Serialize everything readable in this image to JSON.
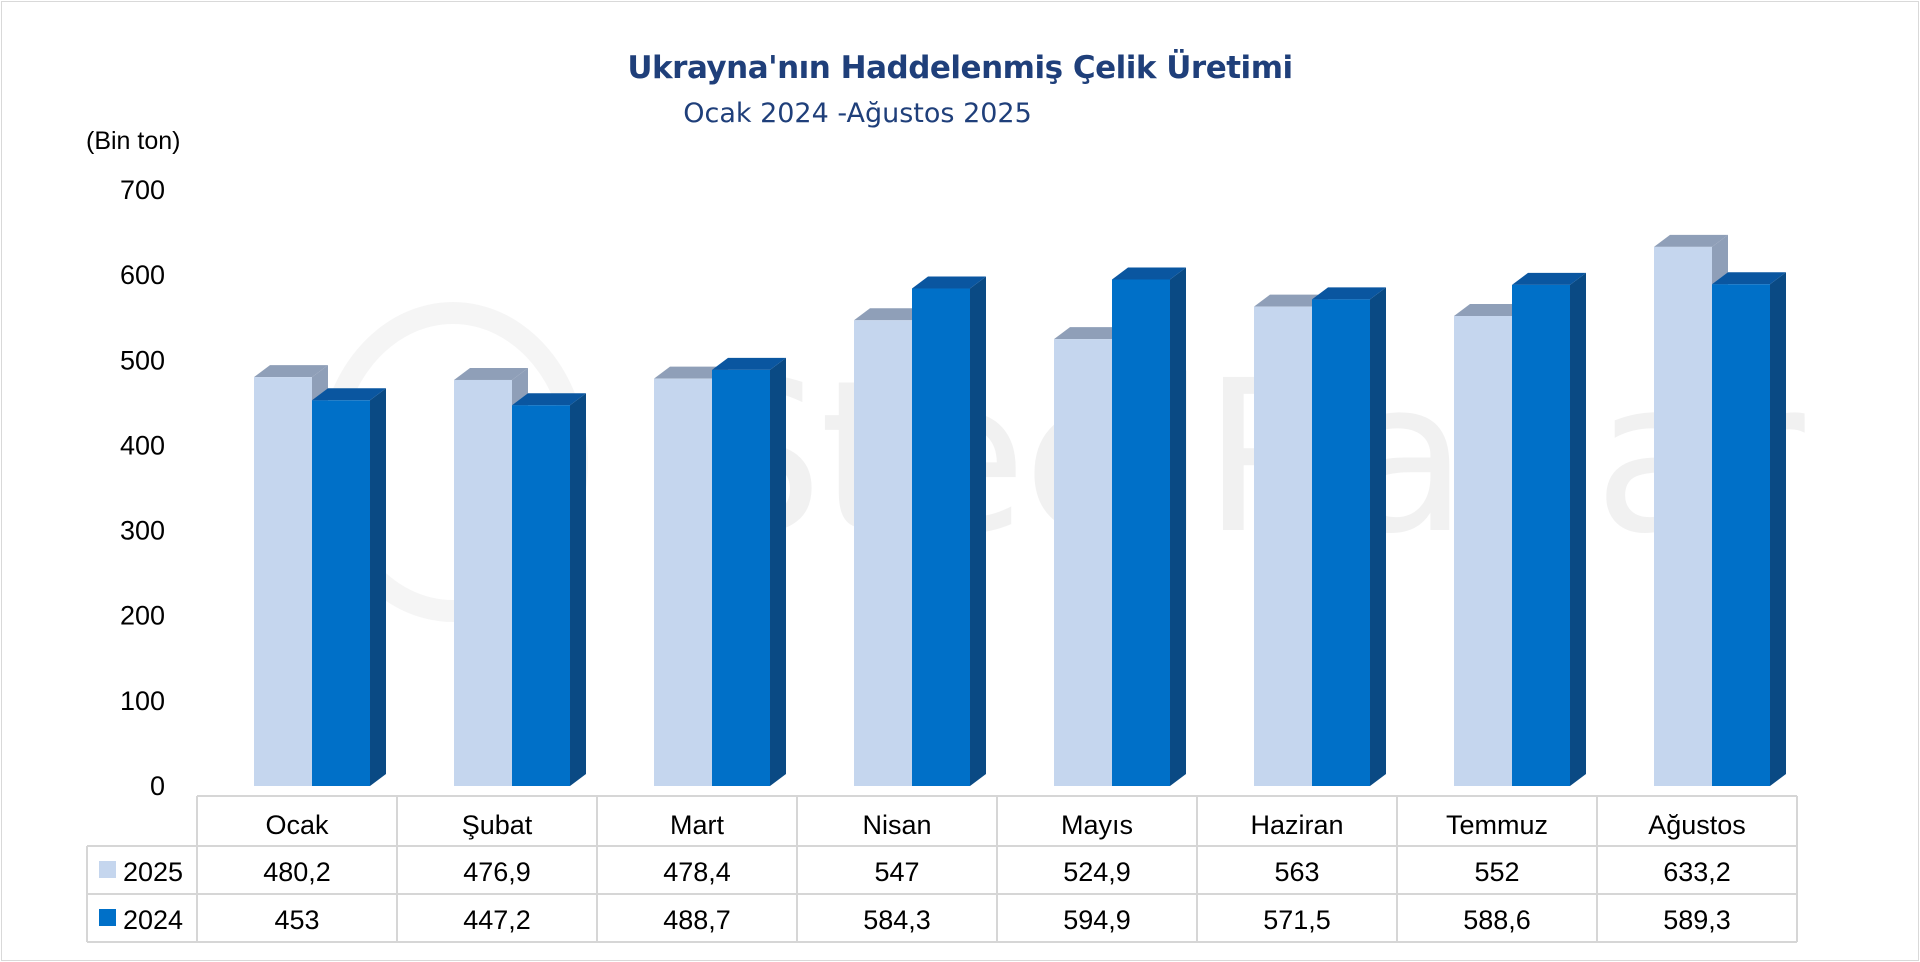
{
  "chart_data": {
    "type": "bar",
    "title": "Ukrayna'nın Haddelenmiş Çelik Üretimi",
    "subtitle": "Ocak 2024 -Ağustos 2025",
    "ylabel": "(Bin ton)",
    "ylim": [
      0,
      700
    ],
    "yticks": [
      "0",
      "100",
      "200",
      "300",
      "400",
      "500",
      "600",
      "700"
    ],
    "categories": [
      "Ocak",
      "Şubat",
      "Mart",
      "Nisan",
      "Mayıs",
      "Haziran",
      "Temmuz",
      "Ağustos"
    ],
    "series": [
      {
        "name": "2025",
        "values": [
          480.2,
          476.9,
          478.4,
          547,
          524.9,
          563,
          552,
          633.2
        ],
        "labels": [
          "480,2",
          "476,9",
          "478,4",
          "547",
          "524,9",
          "563",
          "552",
          "633,2"
        ],
        "color": "#c5d6ee",
        "top_color": "#8f9fb8",
        "side_color": "#8f9fb8"
      },
      {
        "name": "2024",
        "values": [
          453,
          447.2,
          488.7,
          584.3,
          594.9,
          571.5,
          588.6,
          589.3
        ],
        "labels": [
          "453",
          "447,2",
          "488,7",
          "584,3",
          "594,9",
          "571,5",
          "588,6",
          "589,3"
        ],
        "color": "#0070c8",
        "top_color": "#0a56a0",
        "side_color": "#0a4a84"
      }
    ],
    "grid": false,
    "legend": "data-table"
  },
  "watermark": "SteelRadar"
}
